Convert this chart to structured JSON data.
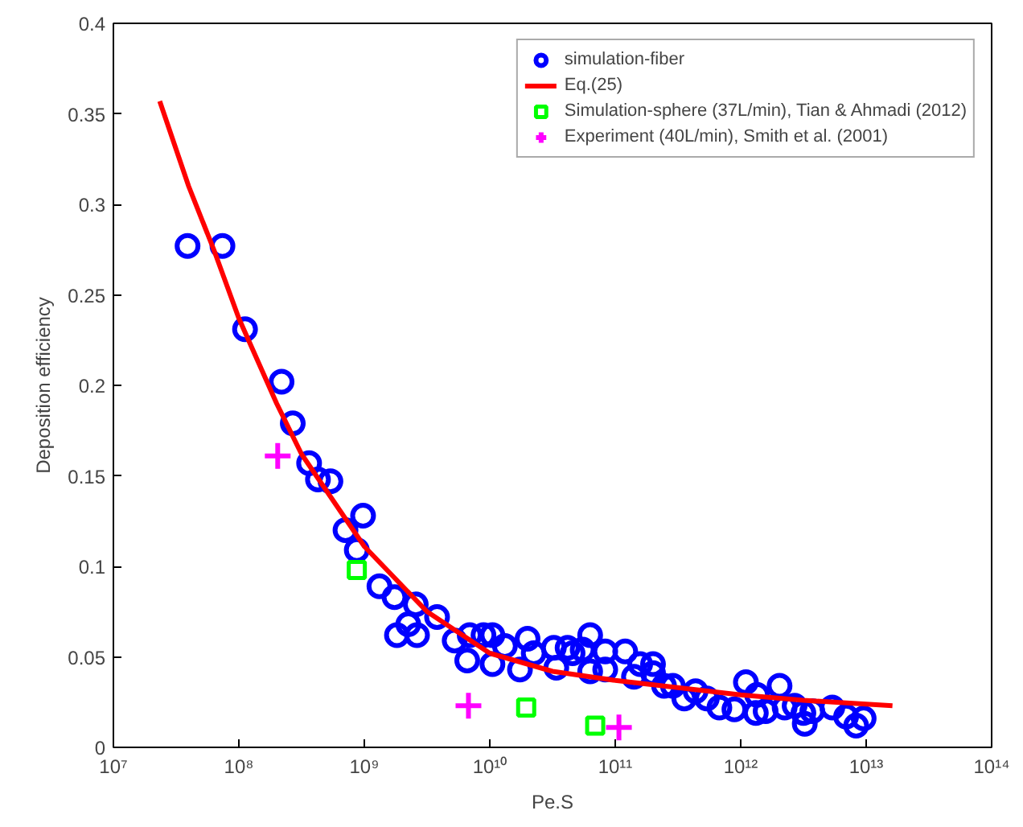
{
  "chart_data": {
    "type": "scatter",
    "xlabel": "Pe.S",
    "ylabel": "Deposition efficiency",
    "log": "x",
    "xlim": [
      10000000.0,
      100000000000000.0
    ],
    "ylim": [
      0,
      0.4
    ],
    "xticks": [
      {
        "value": 10000000.0,
        "label": "10⁷"
      },
      {
        "value": 100000000.0,
        "label": "10⁸"
      },
      {
        "value": 1000000000.0,
        "label": "10⁹"
      },
      {
        "value": 10000000000.0,
        "label": "10¹⁰"
      },
      {
        "value": 100000000000.0,
        "label": "10¹¹"
      },
      {
        "value": 1000000000000.0,
        "label": "10¹²"
      },
      {
        "value": 10000000000000.0,
        "label": "10¹³"
      },
      {
        "value": 100000000000000.0,
        "label": "10¹⁴"
      }
    ],
    "yticks": [
      0,
      0.05,
      0.1,
      0.15,
      0.2,
      0.25,
      0.3,
      0.35,
      0.4
    ],
    "grid": false,
    "legend": "top right",
    "series": [
      {
        "name": "simulation-fiber",
        "marker": "circle",
        "color": "#0000ff",
        "x": [
          39000000.0,
          74000000.0,
          112000000.0,
          219000000.0,
          269000000.0,
          363000000.0,
          427000000.0,
          537000000.0,
          708000000.0,
          977000000.0,
          871000000.0,
          1320000000.0,
          1740000000.0,
          1820000000.0,
          2240000000.0,
          2630000000.0,
          2570000000.0,
          3800000000.0,
          5250000000.0,
          6610000000.0,
          6920000000.0,
          8910000000.0,
          10500000000.0,
          10500000000.0,
          13200000000.0,
          17400000000.0,
          20000000000.0,
          22400000000.0,
          32400000000.0,
          33900000000.0,
          41700000000.0,
          45700000000.0,
          55000000000.0,
          63100000000.0,
          63100000000.0,
          83200000000.0,
          83200000000.0,
          120000000000.0,
          141000000000.0,
          158000000000.0,
          200000000000.0,
          200000000000.0,
          245000000000.0,
          288000000000.0,
          355000000000.0,
          437000000000.0,
          537000000000.0,
          676000000000.0,
          891000000000.0,
          1100000000000.0,
          1350000000000.0,
          1320000000000.0,
          1580000000000.0,
          2040000000000.0,
          2240000000000.0,
          2690000000000.0,
          3160000000000.0,
          3240000000000.0,
          3720000000000.0,
          5370000000000.0,
          6920000000000.0,
          8320000000000.0,
          9550000000000.0
        ],
        "values": [
          0.277,
          0.277,
          0.231,
          0.202,
          0.179,
          0.157,
          0.148,
          0.147,
          0.12,
          0.128,
          0.109,
          0.089,
          0.083,
          0.062,
          0.068,
          0.062,
          0.079,
          0.072,
          0.059,
          0.048,
          0.062,
          0.062,
          0.062,
          0.046,
          0.056,
          0.043,
          0.06,
          0.052,
          0.055,
          0.044,
          0.055,
          0.052,
          0.054,
          0.062,
          0.042,
          0.053,
          0.043,
          0.053,
          0.039,
          0.046,
          0.046,
          0.041,
          0.034,
          0.034,
          0.027,
          0.031,
          0.027,
          0.022,
          0.021,
          0.036,
          0.029,
          0.019,
          0.02,
          0.034,
          0.022,
          0.023,
          0.019,
          0.013,
          0.02,
          0.022,
          0.017,
          0.012,
          0.016
        ]
      },
      {
        "name": "Eq.(25)",
        "type": "line",
        "color": "#ff0000",
        "x": [
          23400000.0,
          39800000.0,
          63100000.0,
          100000000.0,
          200000000.0,
          316000000.0,
          1000000000.0,
          3160000000.0,
          10000000000.0,
          31600000000.0,
          100000000000.0,
          316000000000.0,
          1000000000000.0,
          3160000000000.0,
          16200000000000.0
        ],
        "values": [
          0.357,
          0.31,
          0.275,
          0.237,
          0.19,
          0.162,
          0.111,
          0.075,
          0.052,
          0.042,
          0.037,
          0.033,
          0.029,
          0.026,
          0.023
        ]
      },
      {
        "name": "Simulation-sphere (37L/min), Tian & Ahmadi (2012)",
        "marker": "square",
        "color": "#00ff00",
        "x": [
          871000000.0,
          19500000000.0,
          69200000000.0
        ],
        "values": [
          0.098,
          0.022,
          0.012
        ]
      },
      {
        "name": "Experiment (40L/min), Smith et al. (2001)",
        "marker": "cross",
        "color": "#ff00ff",
        "x": [
          204000000.0,
          6760000000.0,
          107000000000.0
        ],
        "values": [
          0.161,
          0.023,
          0.011
        ]
      }
    ]
  }
}
